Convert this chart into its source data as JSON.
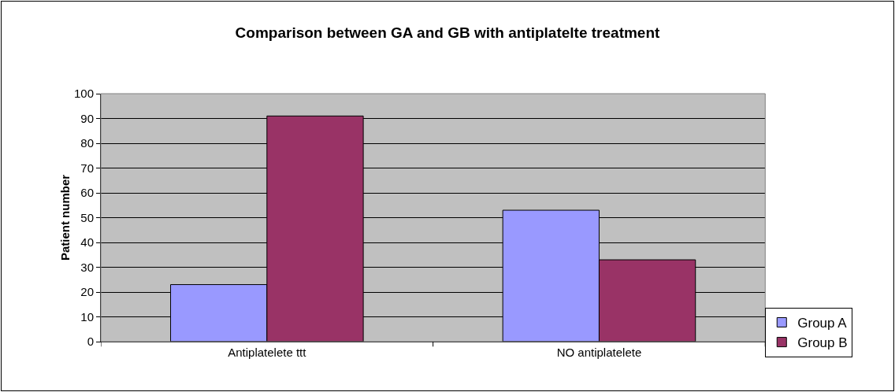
{
  "chart_data": {
    "type": "bar",
    "title": "Comparison between GA and GB with antiplatelte treatment",
    "ylabel": "Patient number",
    "categories": [
      "Antiplatelete ttt",
      "NO antiplatelete"
    ],
    "series": [
      {
        "name": "Group A",
        "color": "#9999ff",
        "values": [
          23,
          53
        ]
      },
      {
        "name": "Group B",
        "color": "#993366",
        "values": [
          91,
          33
        ]
      }
    ],
    "ylim": [
      0,
      100
    ],
    "yticks": [
      0,
      10,
      20,
      30,
      40,
      50,
      60,
      70,
      80,
      90,
      100
    ],
    "grid": "y",
    "legend": "bottom right"
  }
}
